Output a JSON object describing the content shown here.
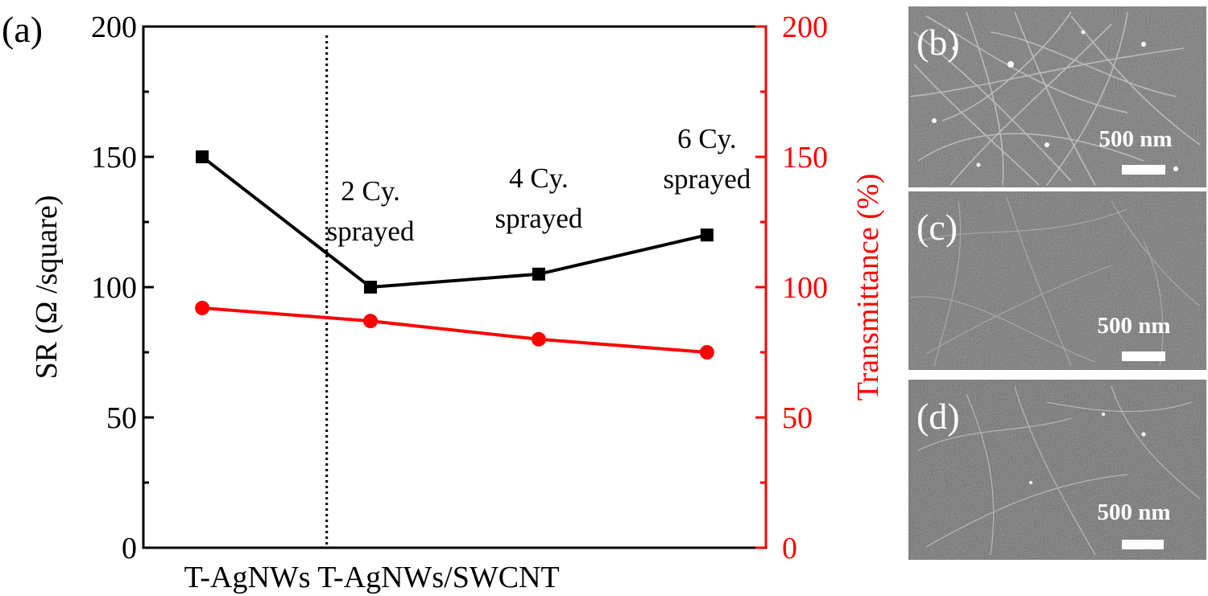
{
  "panel_labels": {
    "a": "(a)",
    "b": "(b)",
    "c": "(c)",
    "d": "(d)"
  },
  "colors": {
    "sr": "#000000",
    "transmittance": "#ff0000",
    "sem_bg": "#5a5a5a"
  },
  "chart_data": {
    "type": "line",
    "categories": [
      "T-AgNWs",
      "2 Cy. sprayed",
      "4 Cy. sprayed",
      "6 Cy. sprayed"
    ],
    "group_labels": [
      "T-AgNWs",
      "T-AgNWs/SWCNT"
    ],
    "xlim": [
      -0.35,
      3.35
    ],
    "divider_x": 0.74,
    "series": [
      {
        "name": "SR",
        "axis": "left",
        "marker": "square",
        "color": "#000000",
        "values": [
          150,
          100,
          105,
          120
        ]
      },
      {
        "name": "Transmittance",
        "axis": "right",
        "marker": "circle",
        "color": "#ff0000",
        "values": [
          92,
          87,
          80,
          75
        ]
      }
    ],
    "y_left": {
      "label": "SR (Ω /square)",
      "lim": [
        0,
        200
      ],
      "ticks": [
        "0",
        "50",
        "100",
        "150",
        "200"
      ]
    },
    "y_right": {
      "label": "Transmittance (%)",
      "lim": [
        0,
        200
      ],
      "ticks": [
        "0",
        "50",
        "100",
        "150",
        "200"
      ]
    },
    "annotations": [
      {
        "lines": [
          "2 Cy.",
          "sprayed"
        ],
        "x": 1,
        "y": 100
      },
      {
        "lines": [
          "4 Cy.",
          "sprayed"
        ],
        "x": 2,
        "y": 105
      },
      {
        "lines": [
          "6 Cy.",
          "sprayed"
        ],
        "x": 3,
        "y": 120
      }
    ]
  },
  "sem_panels": [
    {
      "label": "(b)",
      "scale_bar": "500 nm"
    },
    {
      "label": "(c)",
      "scale_bar": "500 nm"
    },
    {
      "label": "(d)",
      "scale_bar": "500 nm"
    }
  ]
}
